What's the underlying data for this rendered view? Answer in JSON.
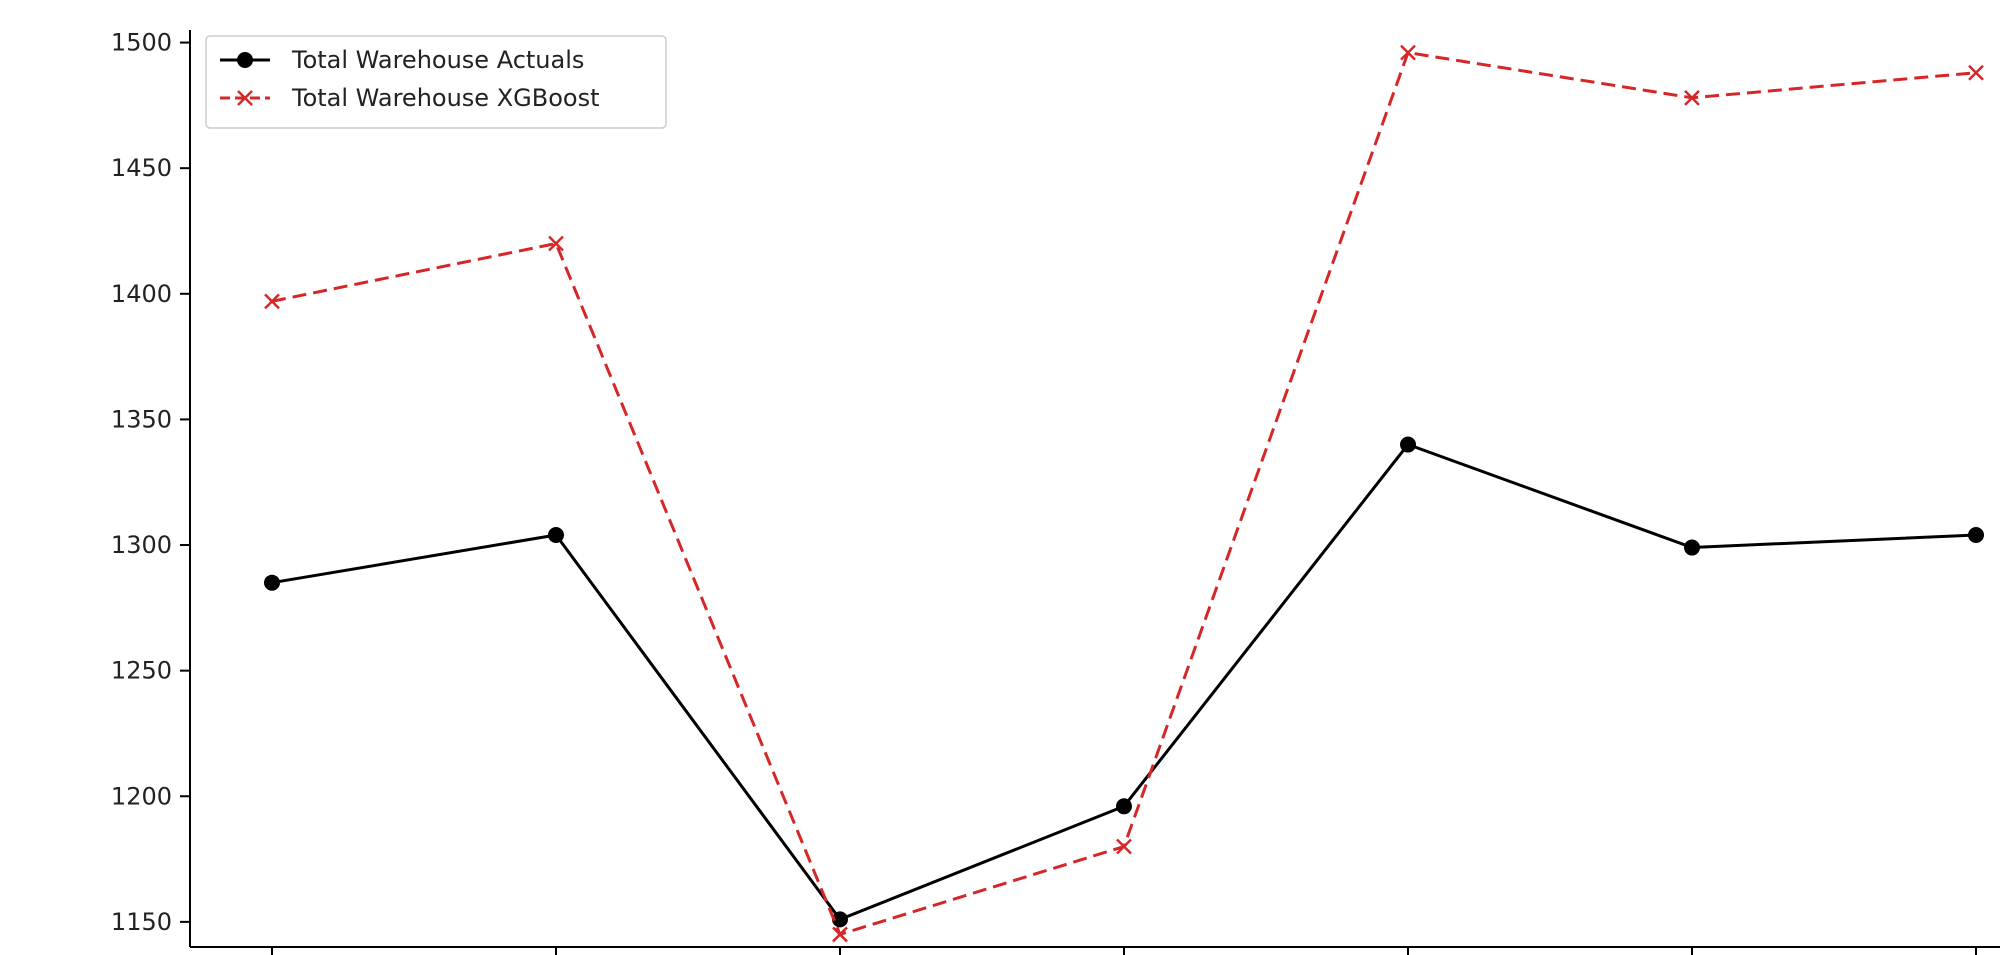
{
  "chart_data": {
    "type": "line",
    "title": "",
    "xlabel": "",
    "ylabel": "",
    "x": [
      0,
      1,
      2,
      3,
      4,
      5,
      6
    ],
    "ylim": [
      1140,
      1505
    ],
    "yticks": [
      1150,
      1200,
      1250,
      1300,
      1350,
      1400,
      1450,
      1500
    ],
    "ytick_labels": [
      "1150",
      "1200",
      "1250",
      "1300",
      "1350",
      "1400",
      "1450",
      "1500"
    ],
    "grid": false,
    "legend": {
      "placement": "top-left",
      "entries": [
        "Total Warehouse Actuals",
        "Total Warehouse XGBoost"
      ]
    },
    "series": [
      {
        "name": "Total Warehouse Actuals",
        "color": "#000000",
        "line_style": "solid",
        "marker": "circle",
        "values": [
          1285,
          1304,
          1151,
          1196,
          1340,
          1299,
          1304
        ]
      },
      {
        "name": "Total Warehouse XGBoost",
        "color": "#d62728",
        "line_style": "dashed",
        "marker": "x",
        "values": [
          1397,
          1420,
          1145,
          1180,
          1496,
          1478,
          1488
        ]
      }
    ]
  }
}
